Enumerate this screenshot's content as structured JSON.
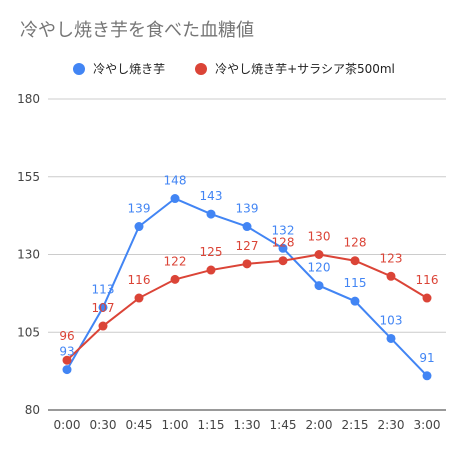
{
  "chart_data": {
    "type": "line",
    "title": "冷やし焼き芋を食べた血糖値",
    "categories": [
      "0:00",
      "0:30",
      "0:45",
      "1:00",
      "1:15",
      "1:30",
      "1:45",
      "2:00",
      "2:15",
      "2:30",
      "3:00"
    ],
    "series": [
      {
        "name": "冷やし焼き芋",
        "color": "#4285f4",
        "values": [
          93,
          113,
          139,
          148,
          143,
          139,
          132,
          120,
          115,
          103,
          91
        ]
      },
      {
        "name": "冷やし焼き芋+サラシア茶500ml",
        "color": "#db4437",
        "values": [
          96,
          107,
          116,
          122,
          125,
          127,
          128,
          130,
          128,
          123,
          116
        ]
      }
    ],
    "ylim": [
      80,
      180
    ],
    "yticks": [
      80,
      105,
      130,
      155,
      180
    ],
    "grid": true,
    "legend_position": "top",
    "xlabel": "",
    "ylabel": ""
  }
}
